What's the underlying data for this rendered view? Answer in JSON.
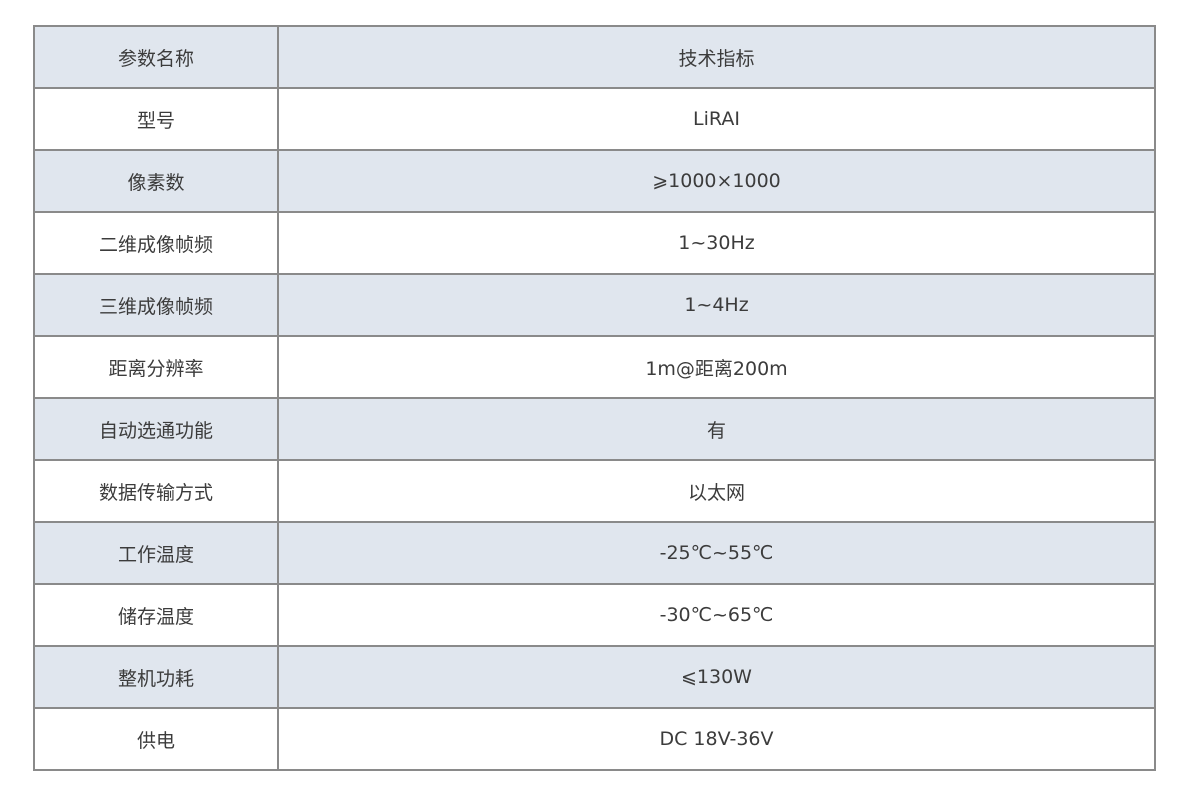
{
  "table": {
    "header": [
      "参数名称",
      "技术指标"
    ],
    "rows": [
      [
        "型号",
        "LiRAI"
      ],
      [
        "像素数",
        "⩾1000×1000"
      ],
      [
        "二维成像帧频",
        "1~30Hz"
      ],
      [
        "三维成像帧频",
        "1~4Hz"
      ],
      [
        "距离分辨率",
        "1m@距离200m"
      ],
      [
        "自动选通功能",
        "有"
      ],
      [
        "数据传输方式",
        "以太网"
      ],
      [
        "工作温度",
        "-25℃~55℃"
      ],
      [
        "储存温度",
        "-30℃~65℃"
      ],
      [
        "整机功耗",
        "⩽130W"
      ],
      [
        "供电",
        "DC 18V-36V"
      ]
    ]
  },
  "colors": {
    "shaded_row": "#e0e6ee",
    "border": "#8a8a8a",
    "text": "#3c3c3c"
  }
}
